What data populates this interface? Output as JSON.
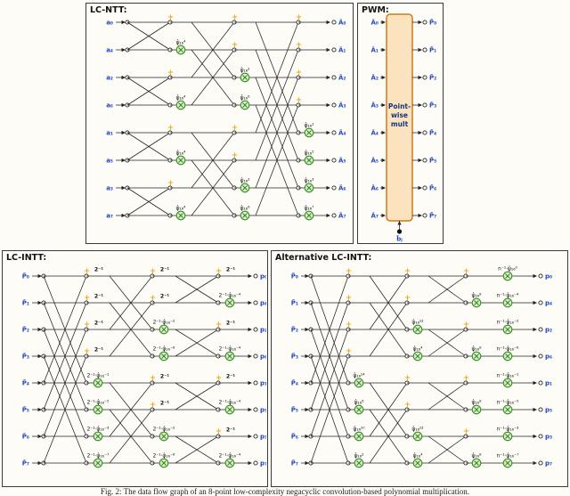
{
  "caption": "Fig. 2: The data flow graph of an 8-point low-complexity negacyclic convolution-based polynomial multiplication.",
  "colors": {
    "line": "#222222",
    "accent_green": "#3a8a28",
    "green_fill": "#d9efca",
    "plus_yellow": "#f0a81c",
    "label_blue": "#2048c0",
    "box_orange_border": "#cf7a1a",
    "box_orange_fill": "#fbe3c0"
  },
  "panels": {
    "lc_ntt": {
      "title": "LC-NTT:",
      "inputs": [
        "a₀",
        "a₄",
        "a₂",
        "a₆",
        "a₁",
        "a₅",
        "a₃",
        "a₇"
      ],
      "outputs": [
        "Â₀",
        "Â₁",
        "Â₂",
        "Â₃",
        "Â₄",
        "Â₅",
        "Â₆",
        "Â₇"
      ],
      "stages": [
        {
          "dist": 1,
          "plus_rows": [
            0,
            2,
            4,
            6
          ],
          "mults": {
            "1": "ψ̂₁₆⁴",
            "3": "ψ̂₁₆⁴",
            "5": "ψ̂₁₆⁴",
            "7": "ψ̂₁₆⁴"
          }
        },
        {
          "dist": 2,
          "plus_rows": [
            0,
            1,
            4,
            5
          ],
          "mults": {
            "2": "ψ̂₁₆²",
            "3": "ψ̂₁₆⁶",
            "6": "ψ̂₁₆²",
            "7": "ψ̂₁₆⁶"
          }
        },
        {
          "dist": 4,
          "plus_rows": [
            0,
            1,
            2,
            3
          ],
          "mults": {
            "4": "ψ̂₁₆¹",
            "5": "ψ̂₁₆⁵",
            "6": "ψ̂₁₆³",
            "7": "ψ̂₁₆⁷"
          }
        }
      ]
    },
    "pwm": {
      "title": "PWM:",
      "inputs": [
        "Â₀",
        "Â₁",
        "Â₂",
        "Â₃",
        "Â₄",
        "Â₅",
        "Â₆",
        "Â₇"
      ],
      "outputs": [
        "P̂₀",
        "P̂₁",
        "P̂₂",
        "P̂₃",
        "P̂₄",
        "P̂₅",
        "P̂₆",
        "P̂₇"
      ],
      "box_lines": [
        "Point-",
        "wise",
        "mult"
      ],
      "bottom_input": "b̂ⱼ"
    },
    "lc_intt": {
      "title": "LC-INTT:",
      "inputs": [
        "P̂₀",
        "P̂₁",
        "P̂₂",
        "P̂₃",
        "P̂₄",
        "P̂₅",
        "P̂₆",
        "P̂₇"
      ],
      "outputs": [
        "p₀",
        "p₄",
        "p₂",
        "p₆",
        "p₁",
        "p₅",
        "p₃",
        "p₇"
      ],
      "stages": [
        {
          "dist": 4,
          "plus_rows": [
            0,
            1,
            2,
            3
          ],
          "top_labels": {
            "0": "2⁻¹",
            "1": "2⁻¹",
            "2": "2⁻¹",
            "3": "2⁻¹"
          },
          "mults": {
            "4": "2⁻¹·ψ̂₁₆⁻¹",
            "5": "2⁻¹·ψ̂₁₆⁻⁵",
            "6": "2⁻¹·ψ̂₁₆⁻³",
            "7": "2⁻¹·ψ̂₁₆⁻⁷"
          }
        },
        {
          "dist": 2,
          "plus_rows": [
            0,
            1,
            4,
            5
          ],
          "top_labels": {
            "0": "2⁻¹",
            "1": "2⁻¹",
            "4": "2⁻¹",
            "5": "2⁻¹"
          },
          "mults": {
            "2": "2⁻¹·ψ̂₁₆⁻²",
            "3": "2⁻¹·ψ̂₁₆⁻⁶",
            "6": "2⁻¹·ψ̂₁₆⁻²",
            "7": "2⁻¹·ψ̂₁₆⁻⁶"
          }
        },
        {
          "dist": 1,
          "plus_rows": [
            0,
            2,
            4,
            6
          ],
          "top_labels": {
            "0": "2⁻¹",
            "2": "2⁻¹",
            "4": "2⁻¹",
            "6": "2⁻¹"
          },
          "mults": {
            "1": "2⁻¹·ψ̂₁₆⁻⁴",
            "3": "2⁻¹·ψ̂₁₆⁻⁴",
            "5": "2⁻¹·ψ̂₁₆⁻⁴",
            "7": "2⁻¹·ψ̂₁₆⁻⁴"
          }
        }
      ]
    },
    "alt_lc_intt": {
      "title": "Alternative LC-INTT:",
      "inputs": [
        "P̃₀",
        "P̃₁",
        "P̃₂",
        "P̃₃",
        "P̃₄",
        "P̃₅",
        "P̃₆",
        "P̃₇"
      ],
      "outputs": [
        "p₀",
        "p₄",
        "p₂",
        "p₆",
        "p₁",
        "p₅",
        "p₃",
        "p₇"
      ],
      "stages": [
        {
          "dist": 4,
          "plus_rows": [
            0,
            1,
            2,
            3
          ],
          "mults": {
            "4": "ψ̂₁₆¹⁴",
            "5": "ψ̂₁₆⁶",
            "6": "ψ̂₁₆¹⁰",
            "7": "ψ̂₁₆²"
          }
        },
        {
          "dist": 2,
          "plus_rows": [
            0,
            1,
            4,
            5
          ],
          "mults": {
            "2": "ψ̂₁₆¹²",
            "3": "ψ̂₁₆⁴",
            "6": "ψ̂₁₆¹²",
            "7": "ψ̂₁₆⁴"
          }
        },
        {
          "dist": 1,
          "plus_rows": [
            0,
            2,
            4,
            6
          ],
          "mults": {
            "1": "ψ̂₁₆⁸",
            "3": "ψ̂₁₆⁸",
            "5": "ψ̂₁₆⁸",
            "7": "ψ̂₁₆⁸"
          }
        }
      ],
      "output_mults": [
        "n⁻¹·ψ̂₁₆⁰",
        "n⁻¹·ψ̂₁₆⁻⁴",
        "n⁻¹·ψ̂₁₆⁻²",
        "n⁻¹·ψ̂₁₆⁻⁶",
        "n⁻¹·ψ̂₁₆⁻¹",
        "n⁻¹·ψ̂₁₆⁻⁵",
        "n⁻¹·ψ̂₁₆⁻³",
        "n⁻¹·ψ̂₁₆⁻⁷"
      ]
    }
  }
}
